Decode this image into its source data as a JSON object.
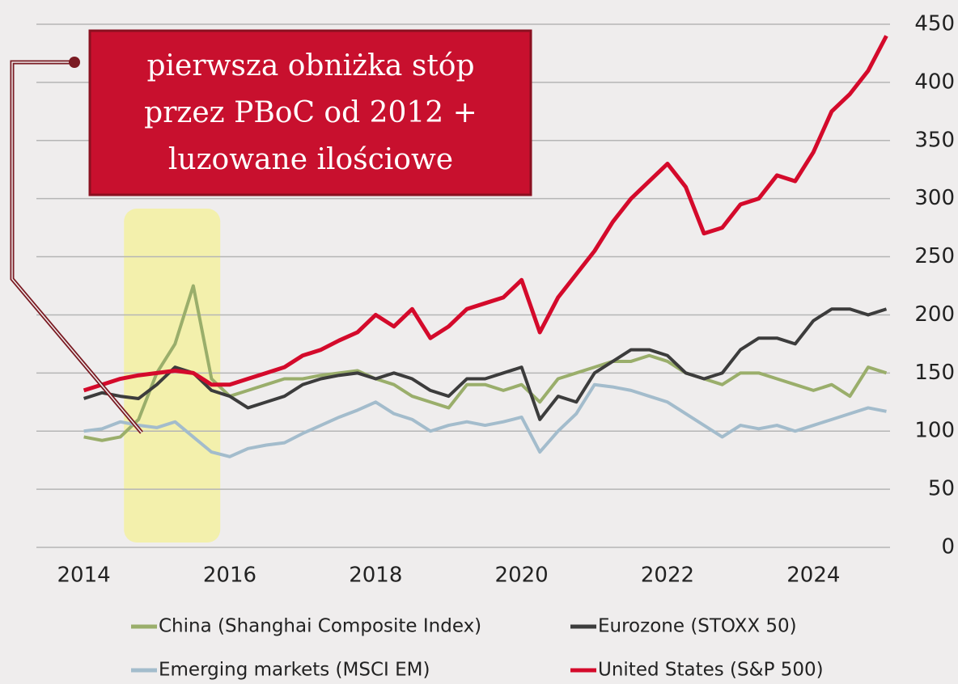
{
  "chart_data": {
    "type": "line",
    "annotation": [
      "pierwsza obniżka stóp",
      "przez PBoC od 2012 +",
      "luzowane ilościowe"
    ],
    "highlight": [
      2014.55,
      2015.87
    ],
    "x": [
      2014,
      2014.25,
      2014.5,
      2014.75,
      2015,
      2015.25,
      2015.5,
      2015.75,
      2016,
      2016.25,
      2016.5,
      2016.75,
      2017,
      2017.25,
      2017.5,
      2017.75,
      2018,
      2018.25,
      2018.5,
      2018.75,
      2019,
      2019.25,
      2019.5,
      2019.75,
      2020,
      2020.25,
      2020.5,
      2020.75,
      2021,
      2021.25,
      2021.5,
      2021.75,
      2022,
      2022.25,
      2022.5,
      2022.75,
      2023,
      2023.25,
      2023.5,
      2023.75,
      2024,
      2024.25,
      2024.5,
      2024.75,
      2025
    ],
    "series": [
      {
        "name": "China (Shanghai Composite Index)",
        "color": "#9aae6b",
        "values": [
          95,
          92,
          95,
          110,
          150,
          175,
          225,
          145,
          130,
          135,
          140,
          145,
          145,
          148,
          150,
          152,
          145,
          140,
          130,
          125,
          120,
          140,
          140,
          135,
          140,
          125,
          145,
          150,
          155,
          160,
          160,
          165,
          160,
          150,
          145,
          140,
          150,
          150,
          145,
          140,
          135,
          140,
          130,
          155,
          150
        ]
      },
      {
        "name": "Eurozone (STOXX 50)",
        "color": "#3c3c3c",
        "values": [
          128,
          133,
          130,
          128,
          140,
          155,
          150,
          135,
          130,
          120,
          125,
          130,
          140,
          145,
          148,
          150,
          145,
          150,
          145,
          135,
          130,
          145,
          145,
          150,
          155,
          110,
          130,
          125,
          150,
          160,
          170,
          170,
          165,
          150,
          145,
          150,
          170,
          180,
          180,
          175,
          195,
          205,
          205,
          200,
          205
        ]
      },
      {
        "name": "Emerging markets (MSCI EM)",
        "color": "#a3bccc",
        "values": [
          100,
          102,
          108,
          105,
          103,
          108,
          95,
          82,
          78,
          85,
          88,
          90,
          98,
          105,
          112,
          118,
          125,
          115,
          110,
          100,
          105,
          108,
          105,
          108,
          112,
          82,
          100,
          115,
          140,
          138,
          135,
          130,
          125,
          115,
          105,
          95,
          105,
          102,
          105,
          100,
          105,
          110,
          115,
          120,
          117
        ]
      },
      {
        "name": "United States (S&P 500)",
        "color": "#d40a2b",
        "values": [
          135,
          140,
          145,
          148,
          150,
          152,
          150,
          140,
          140,
          145,
          150,
          155,
          165,
          170,
          178,
          185,
          200,
          190,
          205,
          180,
          190,
          205,
          210,
          215,
          230,
          185,
          215,
          235,
          255,
          280,
          300,
          315,
          330,
          310,
          270,
          275,
          295,
          300,
          320,
          315,
          340,
          375,
          390,
          410,
          440
        ]
      }
    ],
    "xlim": [
      2013.35,
      2025.05
    ],
    "xticks": [
      2014,
      2016,
      2018,
      2020,
      2022,
      2024
    ],
    "ylim": [
      0,
      450
    ],
    "yticks": [
      0,
      50,
      100,
      150,
      200,
      250,
      300,
      350,
      400,
      450
    ],
    "grid": true
  }
}
